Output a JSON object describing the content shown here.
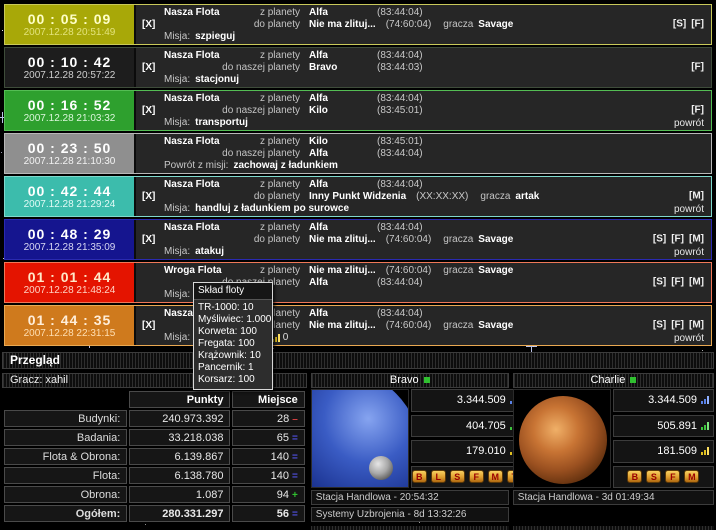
{
  "fleet_rows": [
    {
      "timer": "00 : 05 : 09",
      "date": "2007.12.28 20:51:49",
      "recall": "[X]",
      "fleet": "Nasza Flota",
      "origin_label": "z planety",
      "origin_planet": "Alfa",
      "origin_coords": "(83:44:04)",
      "origin_owner_label": "",
      "origin_owner": "",
      "dest_label": "do planety",
      "dest_planet": "Nie ma zlituj...",
      "dest_coords": "(74:60:04)",
      "dest_owner_label": "gracza",
      "dest_owner": "Savage",
      "mission_label": "Misja:",
      "mission": "szpieguj",
      "links": [
        "[S]",
        "[F]"
      ],
      "return_link": ""
    },
    {
      "timer": "00 : 10 : 42",
      "date": "2007.12.28 20:57:22",
      "recall": "[X]",
      "fleet": "Nasza Flota",
      "origin_label": "z planety",
      "origin_planet": "Alfa",
      "origin_coords": "(83:44:04)",
      "origin_owner_label": "",
      "origin_owner": "",
      "dest_label": "do naszej planety",
      "dest_planet": "Bravo",
      "dest_coords": "(83:44:03)",
      "dest_owner_label": "",
      "dest_owner": "",
      "mission_label": "Misja:",
      "mission": "stacjonuj",
      "links": [
        "[F]"
      ],
      "return_link": ""
    },
    {
      "timer": "00 : 16 : 52",
      "date": "2007.12.28 21:03:32",
      "recall": "[X]",
      "fleet": "Nasza Flota",
      "origin_label": "z planety",
      "origin_planet": "Alfa",
      "origin_coords": "(83:44:04)",
      "origin_owner_label": "",
      "origin_owner": "",
      "dest_label": "do naszej planety",
      "dest_planet": "Kilo",
      "dest_coords": "(83:45:01)",
      "dest_owner_label": "",
      "dest_owner": "",
      "mission_label": "Misja:",
      "mission": "transportuj",
      "links": [
        "[F]"
      ],
      "return_link": "powrót"
    },
    {
      "timer": "00 : 23 : 50",
      "date": "2007.12.28 21:10:30",
      "recall": "",
      "fleet": "Nasza Flota",
      "origin_label": "z planety",
      "origin_planet": "Kilo",
      "origin_coords": "(83:45:01)",
      "origin_owner_label": "",
      "origin_owner": "",
      "dest_label": "do naszej planety",
      "dest_planet": "Alfa",
      "dest_coords": "(83:44:04)",
      "dest_owner_label": "",
      "dest_owner": "",
      "mission_label": "Powrót z misji:",
      "mission": "zachowaj z ładunkiem",
      "links": [],
      "return_link": ""
    },
    {
      "timer": "00 : 42 : 44",
      "date": "2007.12.28 21:29:24",
      "recall": "[X]",
      "fleet": "Nasza Flota",
      "origin_label": "z planety",
      "origin_planet": "Alfa",
      "origin_coords": "(83:44:04)",
      "origin_owner_label": "",
      "origin_owner": "",
      "dest_label": "do planety",
      "dest_planet": "Inny Punkt Widzenia",
      "dest_coords": "(XX:XX:XX)",
      "dest_owner_label": "gracza",
      "dest_owner": "artak",
      "mission_label": "Misja:",
      "mission": "handluj z ładunkiem po surowce",
      "links": [
        "[M]"
      ],
      "return_link": "powrót"
    },
    {
      "timer": "00 : 48 : 29",
      "date": "2007.12.28 21:35:09",
      "recall": "[X]",
      "fleet": "Nasza Flota",
      "origin_label": "z planety",
      "origin_planet": "Alfa",
      "origin_coords": "(83:44:04)",
      "origin_owner_label": "",
      "origin_owner": "",
      "dest_label": "do planety",
      "dest_planet": "Nie ma zlituj...",
      "dest_coords": "(74:60:04)",
      "dest_owner_label": "gracza",
      "dest_owner": "Savage",
      "mission_label": "Misja:",
      "mission": "atakuj",
      "links": [
        "[S]",
        "[F]",
        "[M]"
      ],
      "return_link": "powrót"
    },
    {
      "timer": "01 : 01 : 44",
      "date": "2007.12.28 21:48:24",
      "recall": "",
      "fleet": "Wroga Flota",
      "origin_label": "z planety",
      "origin_planet": "Nie ma zlituj...",
      "origin_coords": "(74:60:04)",
      "origin_owner_label": "gracza",
      "origin_owner": "Savage",
      "dest_label": "do naszej planety",
      "dest_planet": "Alfa",
      "dest_coords": "(83:44:04)",
      "dest_owner_label": "",
      "dest_owner": "",
      "mission_label": "Misja:",
      "mission": "",
      "links": [
        "[S]",
        "[F]",
        "[M]"
      ],
      "return_link": ""
    },
    {
      "timer": "01 : 44 : 35",
      "date": "2007.12.28 22:31:15",
      "recall": "[X]",
      "fleet": "Nasza Flota",
      "origin_label": "z planety",
      "origin_planet": "Alfa",
      "origin_coords": "(83:44:04)",
      "origin_owner_label": "",
      "origin_owner": "",
      "dest_label": "do planety",
      "dest_planet": "Nie ma zlituj...",
      "dest_coords": "(74:60:04)",
      "dest_owner_label": "gracza",
      "dest_owner": "Savage",
      "mission_label": "Misja:",
      "mission": "",
      "links": [
        "[S]",
        "[F]",
        "[M]"
      ],
      "return_link": "powrót",
      "cargo": [
        {
          "value": "0"
        },
        {
          "value": "0"
        }
      ]
    }
  ],
  "tooltip": {
    "title": "Skład floty",
    "items": [
      "TR-1000: 10",
      "Myśliwiec: 1.000",
      "Korweta: 100",
      "Fregata: 100",
      "Krążownik: 10",
      "Pancernik: 1",
      "Korsarz: 100"
    ]
  },
  "overview": {
    "title": "Przegląd",
    "player": "Gracz: xahil",
    "stats": {
      "headers": {
        "points": "Punkty",
        "rank": "Miejsce"
      },
      "rows": [
        {
          "label": "Budynki:",
          "points": "240.973.392",
          "rank": "28",
          "trend": "–"
        },
        {
          "label": "Badania:",
          "points": "33.218.038",
          "rank": "65",
          "trend": "="
        },
        {
          "label": "Flota & Obrona:",
          "points": "6.139.867",
          "rank": "140",
          "trend": "="
        },
        {
          "label": "Flota:",
          "points": "6.138.780",
          "rank": "140",
          "trend": "="
        },
        {
          "label": "Obrona:",
          "points": "1.087",
          "rank": "94",
          "trend": "+"
        },
        {
          "label": "Ogółem:",
          "points": "280.331.297",
          "rank": "56",
          "trend": "="
        }
      ]
    }
  },
  "planets": [
    {
      "name": "Bravo",
      "resources": [
        {
          "value": "3.344.509"
        },
        {
          "value": "404.705"
        },
        {
          "value": "179.010"
        }
      ],
      "buttons": [
        "B",
        "L",
        "S",
        "F",
        "M",
        "T"
      ],
      "status": [
        "Stacja Handlowa - 20:54:32",
        "Systemy Uzbrojenia - 8d 13:32:26"
      ]
    },
    {
      "name": "Charlie",
      "resources": [
        {
          "value": "3.344.509"
        },
        {
          "value": "505.891"
        },
        {
          "value": "181.509"
        }
      ],
      "buttons": [
        "B",
        "S",
        "F",
        "M"
      ],
      "status": [
        "Stacja Handlowa - 3d 01:49:34"
      ]
    }
  ],
  "colors": {
    "row_espionage": "#a8a808",
    "row_station": "#1d1d1d",
    "row_transport": "#2ea02e",
    "row_return": "#8f8f8f",
    "row_trade": "#3cbcac",
    "row_attack": "#15158f",
    "row_enemy_attack": "#e41400",
    "row_outbound": "#cf7a1d",
    "trend_down": "#d04040",
    "trend_same": "#5050e0",
    "trend_up": "#30c030",
    "online_dot": "#30c030",
    "button_gold": "#e0a030",
    "resource_blue": "#5a82e8",
    "resource_green": "#3cc43c",
    "resource_yellow": "#e0c020"
  }
}
